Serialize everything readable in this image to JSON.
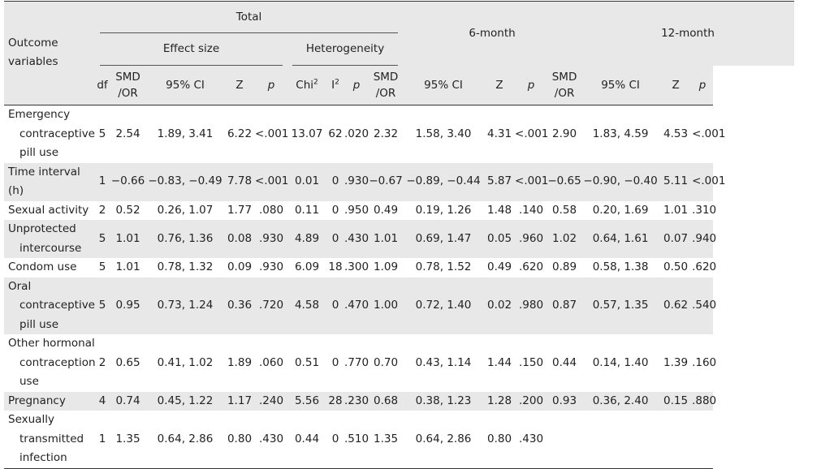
{
  "headers": {
    "outcome": "Outcome variables",
    "total": "Total",
    "effect_size": "Effect size",
    "heterogeneity": "Heterogeneity",
    "six_month": "6-month",
    "twelve_month": "12-month",
    "df": "df",
    "smd_or": "SMD /OR",
    "ci": "95% CI",
    "z": "Z",
    "p": "p",
    "chi": "Chi",
    "chi_sup": "2",
    "i": "I",
    "i_sup": "2"
  },
  "rows": [
    {
      "label": [
        "Emergency",
        "contraceptive",
        "pill use"
      ],
      "shaded": false,
      "df": "5",
      "smd": "2.54",
      "ci": "1.89, 3.41",
      "z": "6.22",
      "p": "<.001",
      "chi": "13.07",
      "i2": "62",
      "hp": ".020",
      "s6_smd": "2.32",
      "s6_ci": "1.58, 3.40",
      "s6_z": "4.31",
      "s6_p": "<.001",
      "s12_smd": "2.90",
      "s12_ci": "1.83, 4.59",
      "s12_z": "4.53",
      "s12_p": "<.001"
    },
    {
      "label": [
        "Time interval (h)"
      ],
      "shaded": true,
      "df": "1",
      "smd": "−0.66",
      "ci": "−0.83, −0.49",
      "z": "7.78",
      "p": "<.001",
      "chi": "0.01",
      "i2": "0",
      "hp": ".930",
      "s6_smd": "−0.67",
      "s6_ci": "−0.89, −0.44",
      "s6_z": "5.87",
      "s6_p": "<.001",
      "s12_smd": "−0.65",
      "s12_ci": "−0.90, −0.40",
      "s12_z": "5.11",
      "s12_p": "<.001"
    },
    {
      "label": [
        "Sexual activity"
      ],
      "shaded": false,
      "df": "2",
      "smd": "0.52",
      "ci": "0.26, 1.07",
      "z": "1.77",
      "p": ".080",
      "chi": "0.11",
      "i2": "0",
      "hp": ".950",
      "s6_smd": "0.49",
      "s6_ci": "0.19, 1.26",
      "s6_z": "1.48",
      "s6_p": ".140",
      "s12_smd": "0.58",
      "s12_ci": "0.20, 1.69",
      "s12_z": "1.01",
      "s12_p": ".310"
    },
    {
      "label": [
        "Unprotected",
        "intercourse"
      ],
      "shaded": true,
      "df": "5",
      "smd": "1.01",
      "ci": "0.76, 1.36",
      "z": "0.08",
      "p": ".930",
      "chi": "4.89",
      "i2": "0",
      "hp": ".430",
      "s6_smd": "1.01",
      "s6_ci": "0.69, 1.47",
      "s6_z": "0.05",
      "s6_p": ".960",
      "s12_smd": "1.02",
      "s12_ci": "0.64, 1.61",
      "s12_z": "0.07",
      "s12_p": ".940"
    },
    {
      "label": [
        "Condom use"
      ],
      "shaded": false,
      "df": "5",
      "smd": "1.01",
      "ci": "0.78, 1.32",
      "z": "0.09",
      "p": ".930",
      "chi": "6.09",
      "i2": "18",
      "hp": ".300",
      "s6_smd": "1.09",
      "s6_ci": "0.78, 1.52",
      "s6_z": "0.49",
      "s6_p": ".620",
      "s12_smd": "0.89",
      "s12_ci": "0.58, 1.38",
      "s12_z": "0.50",
      "s12_p": ".620"
    },
    {
      "label": [
        "Oral",
        "contraceptive",
        "pill use"
      ],
      "shaded": true,
      "df": "5",
      "smd": "0.95",
      "ci": "0.73, 1.24",
      "z": "0.36",
      "p": ".720",
      "chi": "4.58",
      "i2": "0",
      "hp": ".470",
      "s6_smd": "1.00",
      "s6_ci": "0.72, 1.40",
      "s6_z": "0.02",
      "s6_p": ".980",
      "s12_smd": "0.87",
      "s12_ci": "0.57, 1.35",
      "s12_z": "0.62",
      "s12_p": ".540"
    },
    {
      "label": [
        "Other hormonal",
        "contraception",
        "use"
      ],
      "shaded": false,
      "df": "2",
      "smd": "0.65",
      "ci": "0.41, 1.02",
      "z": "1.89",
      "p": ".060",
      "chi": "0.51",
      "i2": "0",
      "hp": ".770",
      "s6_smd": "0.70",
      "s6_ci": "0.43, 1.14",
      "s6_z": "1.44",
      "s6_p": ".150",
      "s12_smd": "0.44",
      "s12_ci": "0.14, 1.40",
      "s12_z": "1.39",
      "s12_p": ".160"
    },
    {
      "label": [
        "Pregnancy"
      ],
      "shaded": true,
      "df": "4",
      "smd": "0.74",
      "ci": "0.45, 1.22",
      "z": "1.17",
      "p": ".240",
      "chi": "5.56",
      "i2": "28",
      "hp": ".230",
      "s6_smd": "0.68",
      "s6_ci": "0.38, 1.23",
      "s6_z": "1.28",
      "s6_p": ".200",
      "s12_smd": "0.93",
      "s12_ci": "0.36, 2.40",
      "s12_z": "0.15",
      "s12_p": ".880"
    },
    {
      "label": [
        "Sexually",
        "transmitted",
        "infection"
      ],
      "shaded": false,
      "df": "1",
      "smd": "1.35",
      "ci": "0.64, 2.86",
      "z": "0.80",
      "p": ".430",
      "chi": "0.44",
      "i2": "0",
      "hp": ".510",
      "s6_smd": "1.35",
      "s6_ci": "0.64, 2.86",
      "s6_z": "0.80",
      "s6_p": ".430",
      "s12_smd": "",
      "s12_ci": "",
      "s12_z": "",
      "s12_p": ""
    }
  ]
}
